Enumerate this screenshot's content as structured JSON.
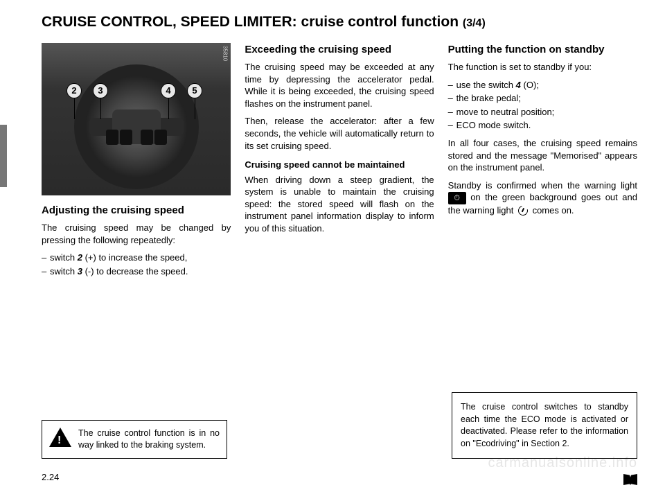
{
  "title_main": "CRUISE CONTROL, SPEED LIMITER: cruise control function",
  "title_part": "(3/4)",
  "figure": {
    "code": "35810",
    "callouts": [
      "2",
      "3",
      "4",
      "5"
    ]
  },
  "col1": {
    "heading": "Adjusting the cruising speed",
    "p1": "The cruising speed may be changed by pressing the following repeatedly:",
    "li1_pre": "switch ",
    "li1_bold": "2",
    "li1_post": " (+) to increase the speed,",
    "li2_pre": "switch ",
    "li2_bold": "3",
    "li2_post": " (-) to decrease the speed."
  },
  "warning_text": "The cruise control function is in no way linked to the braking system.",
  "col2": {
    "h1": "Exceeding the cruising speed",
    "p1": "The cruising speed may be exceeded at any time by depressing the accelerator pedal. While it is being exceeded, the cruising speed flashes on the instrument panel.",
    "p2": "Then, release the accelerator: after a few seconds, the vehicle will automatically return to its set cruising speed.",
    "h2": "Cruising speed cannot be maintained",
    "p3": "When driving down a steep gradient, the system is unable to maintain the cruising speed: the stored speed will flash on the instrument panel information display to inform you of this situation."
  },
  "col3": {
    "h1": "Putting the function on standby",
    "p1": "The function is set to standby if you:",
    "li1_pre": "use the switch ",
    "li1_bold": "4",
    "li1_post": " (O);",
    "li2": "the brake pedal;",
    "li3": "move to neutral position;",
    "li4": "ECO mode switch.",
    "p2": "In all four cases, the cruising speed remains stored and the message \"Memorised\" appears on the instrument panel.",
    "p3a": "Standby is confirmed when the warning light ",
    "p3b": " on the green background goes out and the warning light ",
    "p3c": " comes on."
  },
  "note_text": "The cruise control switches to standby each time the ECO mode is activated or deactivated. Please refer to the information on \"Ecodriving\" in Section 2.",
  "page_number": "2.24",
  "watermark": "carmanualsonline.info"
}
